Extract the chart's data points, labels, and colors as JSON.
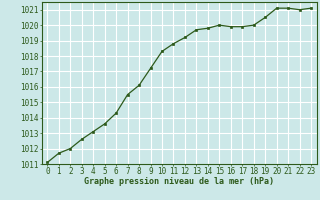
{
  "x": [
    0,
    1,
    2,
    3,
    4,
    5,
    6,
    7,
    8,
    9,
    10,
    11,
    12,
    13,
    14,
    15,
    16,
    17,
    18,
    19,
    20,
    21,
    22,
    23
  ],
  "y": [
    1011.1,
    1011.7,
    1012.0,
    1012.6,
    1013.1,
    1013.6,
    1014.3,
    1015.5,
    1016.1,
    1017.2,
    1018.3,
    1018.8,
    1019.2,
    1019.7,
    1019.8,
    1020.0,
    1019.9,
    1019.9,
    1020.0,
    1020.5,
    1021.1,
    1021.1,
    1021.0,
    1021.1
  ],
  "xlabel": "Graphe pression niveau de la mer (hPa)",
  "ylim": [
    1011,
    1021.5
  ],
  "xlim": [
    -0.5,
    23.5
  ],
  "yticks": [
    1011,
    1012,
    1013,
    1014,
    1015,
    1016,
    1017,
    1018,
    1019,
    1020,
    1021
  ],
  "xticks": [
    0,
    1,
    2,
    3,
    4,
    5,
    6,
    7,
    8,
    9,
    10,
    11,
    12,
    13,
    14,
    15,
    16,
    17,
    18,
    19,
    20,
    21,
    22,
    23
  ],
  "line_color": "#2d5a1b",
  "marker_color": "#2d5a1b",
  "bg_color": "#cce8e8",
  "grid_color": "#ffffff",
  "border_color": "#2d5a1b",
  "xlabel_color": "#2d5a1b",
  "xlabel_fontsize": 6.0,
  "tick_fontsize": 5.5,
  "tick_color": "#2d5a1b"
}
